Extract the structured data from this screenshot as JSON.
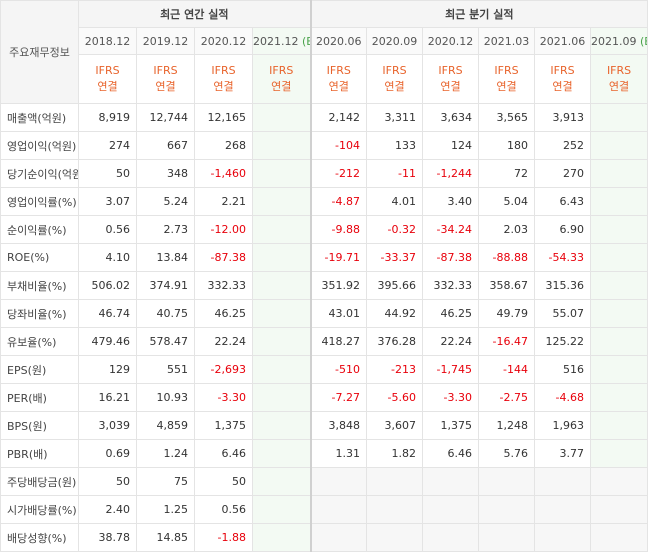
{
  "header": {
    "corner_label": "주요재무정보",
    "annual_group": "최근 연간 실적",
    "quarter_group": "최근 분기 실적",
    "annual_periods": [
      "2018.12",
      "2019.12",
      "2020.12",
      "2021.12"
    ],
    "quarter_periods": [
      "2020.06",
      "2020.09",
      "2020.12",
      "2021.03",
      "2021.06",
      "2021.09"
    ],
    "estimate_mark": "(E)",
    "basis_line1": "IFRS",
    "basis_line2": "연결"
  },
  "rows": [
    {
      "label": "매출액(억원)",
      "annual": [
        "8,919",
        "12,744",
        "12,165",
        ""
      ],
      "quarter": [
        "2,142",
        "3,311",
        "3,634",
        "3,565",
        "3,913",
        ""
      ]
    },
    {
      "label": "영업이익(억원)",
      "annual": [
        "274",
        "667",
        "268",
        ""
      ],
      "quarter": [
        "-104",
        "133",
        "124",
        "180",
        "252",
        ""
      ]
    },
    {
      "label": "당기순이익(억원)",
      "annual": [
        "50",
        "348",
        "-1,460",
        ""
      ],
      "quarter": [
        "-212",
        "-11",
        "-1,244",
        "72",
        "270",
        ""
      ]
    },
    {
      "label": "영업이익률(%)",
      "annual": [
        "3.07",
        "5.24",
        "2.21",
        ""
      ],
      "quarter": [
        "-4.87",
        "4.01",
        "3.40",
        "5.04",
        "6.43",
        ""
      ]
    },
    {
      "label": "순이익률(%)",
      "annual": [
        "0.56",
        "2.73",
        "-12.00",
        ""
      ],
      "quarter": [
        "-9.88",
        "-0.32",
        "-34.24",
        "2.03",
        "6.90",
        ""
      ]
    },
    {
      "label": "ROE(%)",
      "annual": [
        "4.10",
        "13.84",
        "-87.38",
        ""
      ],
      "quarter": [
        "-19.71",
        "-33.37",
        "-87.38",
        "-88.88",
        "-54.33",
        ""
      ]
    },
    {
      "label": "부채비율(%)",
      "annual": [
        "506.02",
        "374.91",
        "332.33",
        ""
      ],
      "quarter": [
        "351.92",
        "395.66",
        "332.33",
        "358.67",
        "315.36",
        ""
      ]
    },
    {
      "label": "당좌비율(%)",
      "annual": [
        "46.74",
        "40.75",
        "46.25",
        ""
      ],
      "quarter": [
        "43.01",
        "44.92",
        "46.25",
        "49.79",
        "55.07",
        ""
      ]
    },
    {
      "label": "유보율(%)",
      "annual": [
        "479.46",
        "578.47",
        "22.24",
        ""
      ],
      "quarter": [
        "418.27",
        "376.28",
        "22.24",
        "-16.47",
        "125.22",
        ""
      ]
    },
    {
      "label": "EPS(원)",
      "annual": [
        "129",
        "551",
        "-2,693",
        ""
      ],
      "quarter": [
        "-510",
        "-213",
        "-1,745",
        "-144",
        "516",
        ""
      ]
    },
    {
      "label": "PER(배)",
      "annual": [
        "16.21",
        "10.93",
        "-3.30",
        ""
      ],
      "quarter": [
        "-7.27",
        "-5.60",
        "-3.30",
        "-2.75",
        "-4.68",
        ""
      ]
    },
    {
      "label": "BPS(원)",
      "annual": [
        "3,039",
        "4,859",
        "1,375",
        ""
      ],
      "quarter": [
        "3,848",
        "3,607",
        "1,375",
        "1,248",
        "1,963",
        ""
      ]
    },
    {
      "label": "PBR(배)",
      "annual": [
        "0.69",
        "1.24",
        "6.46",
        ""
      ],
      "quarter": [
        "1.31",
        "1.82",
        "6.46",
        "5.76",
        "3.77",
        ""
      ]
    },
    {
      "label": "주당배당금(원)",
      "annual": [
        "50",
        "75",
        "50",
        ""
      ],
      "quarter": [
        "",
        "",
        "",
        "",
        "",
        ""
      ]
    },
    {
      "label": "시가배당률(%)",
      "annual": [
        "2.40",
        "1.25",
        "0.56",
        ""
      ],
      "quarter": [
        "",
        "",
        "",
        "",
        "",
        ""
      ]
    },
    {
      "label": "배당성향(%)",
      "annual": [
        "38.78",
        "14.85",
        "-1.88",
        ""
      ],
      "quarter": [
        "",
        "",
        "",
        "",
        "",
        ""
      ]
    }
  ],
  "colors": {
    "negative": "#e8000b",
    "basis": "#e8632b",
    "estimate_mark": "#49a34a",
    "estimate_bg": "#f3faf3"
  }
}
